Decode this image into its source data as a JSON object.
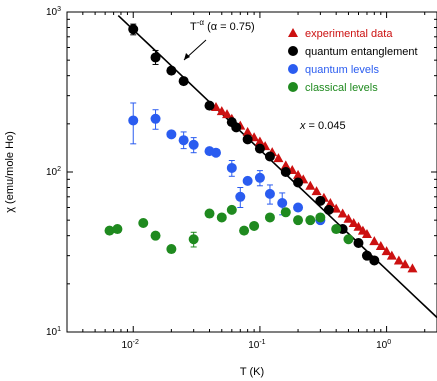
{
  "chart_data": {
    "type": "scatter",
    "title": "",
    "xlabel": "T (K)",
    "ylabel": "χ (emu/mole Ho)",
    "xscale": "log",
    "yscale": "log",
    "xlim": [
      0.003,
      2.5
    ],
    "ylim": [
      10,
      1000
    ],
    "grid": false,
    "legend_position": "top-right",
    "x_ticks": [
      {
        "value": 0.01,
        "base": "10",
        "exp": "-2"
      },
      {
        "value": 0.1,
        "base": "10",
        "exp": "-1"
      },
      {
        "value": 1,
        "base": "10",
        "exp": "0"
      }
    ],
    "y_ticks": [
      {
        "value": 10,
        "base": "10",
        "exp": "1"
      },
      {
        "value": 100,
        "base": "10",
        "exp": "2"
      },
      {
        "value": 1000,
        "base": "10",
        "exp": "3"
      }
    ],
    "series": [
      {
        "name": "experimental data",
        "marker": "triangle",
        "color": "#cc1111",
        "x": [
          0.045,
          0.05,
          0.055,
          0.06,
          0.07,
          0.08,
          0.09,
          0.1,
          0.11,
          0.125,
          0.14,
          0.16,
          0.18,
          0.2,
          0.22,
          0.25,
          0.28,
          0.32,
          0.36,
          0.4,
          0.45,
          0.5,
          0.55,
          0.6,
          0.65,
          0.7,
          0.8,
          0.9,
          1.0,
          1.1,
          1.25,
          1.4,
          1.6
        ],
        "y": [
          255,
          240,
          230,
          215,
          195,
          178,
          165,
          155,
          145,
          133,
          122,
          110,
          103,
          96,
          90,
          82,
          76,
          69,
          64,
          59,
          55,
          51,
          48,
          45.5,
          43,
          41,
          37,
          34.5,
          32,
          30,
          28,
          26.5,
          25
        ]
      },
      {
        "name": "quantum entanglement",
        "marker": "circle",
        "color": "#000000",
        "x": [
          0.01,
          0.015,
          0.02,
          0.025,
          0.04,
          0.06,
          0.065,
          0.08,
          0.1,
          0.12,
          0.16,
          0.2,
          0.3,
          0.35,
          0.45,
          0.6,
          0.7,
          0.8
        ],
        "y": [
          780,
          520,
          430,
          370,
          260,
          205,
          190,
          160,
          140,
          125,
          100,
          86,
          66,
          58,
          44,
          36,
          30,
          28
        ]
      },
      {
        "name": "quantum levels",
        "marker": "circle",
        "color": "#2a5cf0",
        "x": [
          0.01,
          0.015,
          0.02,
          0.025,
          0.03,
          0.04,
          0.045,
          0.06,
          0.07,
          0.08,
          0.1,
          0.12,
          0.15,
          0.2,
          0.3
        ],
        "y": [
          210,
          215,
          172,
          158,
          148,
          135,
          132,
          106,
          70,
          88,
          92,
          73,
          64,
          60,
          50
        ]
      },
      {
        "name": "classical levels",
        "marker": "circle",
        "color": "#1f8a1f",
        "x": [
          0.0065,
          0.0075,
          0.012,
          0.015,
          0.02,
          0.03,
          0.04,
          0.05,
          0.06,
          0.075,
          0.09,
          0.12,
          0.16,
          0.2,
          0.25,
          0.3,
          0.4,
          0.5
        ],
        "y": [
          43,
          44,
          48,
          40,
          33,
          38,
          55,
          52,
          58,
          43,
          46,
          52,
          56,
          50,
          50,
          52,
          44,
          38
        ]
      }
    ],
    "error_bars": [
      {
        "series": "quantum levels",
        "x": 0.01,
        "low": 150,
        "high": 270
      },
      {
        "series": "quantum levels",
        "x": 0.015,
        "low": 185,
        "high": 245
      },
      {
        "series": "quantum levels",
        "x": 0.025,
        "low": 140,
        "high": 178
      },
      {
        "series": "quantum levels",
        "x": 0.03,
        "low": 132,
        "high": 164
      },
      {
        "series": "quantum levels",
        "x": 0.06,
        "low": 94,
        "high": 118
      },
      {
        "series": "quantum levels",
        "x": 0.07,
        "low": 60,
        "high": 80
      },
      {
        "series": "quantum levels",
        "x": 0.1,
        "low": 82,
        "high": 102
      },
      {
        "series": "quantum levels",
        "x": 0.12,
        "low": 63,
        "high": 83
      },
      {
        "series": "quantum levels",
        "x": 0.15,
        "low": 54,
        "high": 74
      },
      {
        "series": "quantum entanglement",
        "x": 0.015,
        "low": 470,
        "high": 575
      },
      {
        "series": "quantum entanglement",
        "x": 0.01,
        "low": 720,
        "high": 840
      },
      {
        "series": "classical levels",
        "x": 0.03,
        "low": 34,
        "high": 42
      }
    ],
    "fit_line": {
      "x": [
        0.0045,
        2.5
      ],
      "alpha": 0.75,
      "prefactor": 24.5
    },
    "annotations": {
      "fit_label": "T",
      "fit_exponent": "-α",
      "fit_alpha": " (α = 0.75)",
      "x_value": "x",
      "x_eq": " = 0.045"
    }
  }
}
